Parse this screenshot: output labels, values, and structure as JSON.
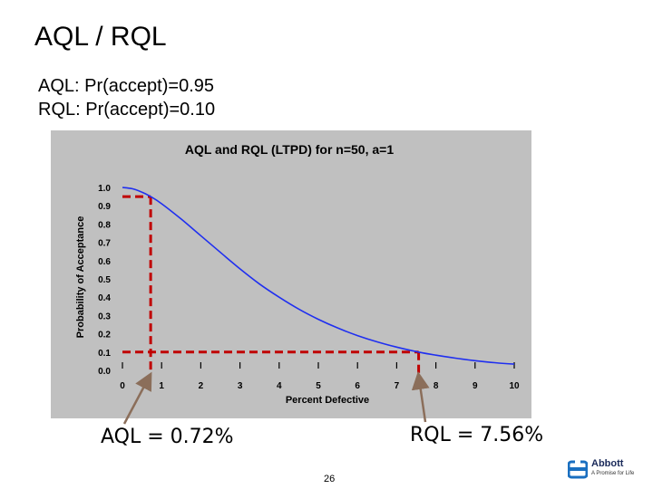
{
  "slide": {
    "title": "AQL / RQL",
    "definitions": [
      {
        "term": "AQL",
        "text": ": Pr(accept)=0.95"
      },
      {
        "term": "RQL",
        "text": ": Pr(accept)=0.10"
      }
    ],
    "aql_callout": "AQL = 0.72%",
    "rql_callout": "RQL = 7.56%",
    "page_number": "26",
    "logo": {
      "name": "Abbott",
      "tagline": "A Promise for Life"
    }
  },
  "colors": {
    "plot_background": "#c0c0c0",
    "curve": "#1f2ff0",
    "reference_lines": "#c00000",
    "callout_arrow": "#8b6e5a"
  },
  "chart_data": {
    "type": "line",
    "title": "AQL and RQL (LTPD) for n=50, a=1",
    "xlabel": "Percent Defective",
    "ylabel": "Probability of Acceptance",
    "xlim": [
      0,
      10
    ],
    "ylim": [
      0,
      1
    ],
    "x_ticks": [
      "0",
      "1",
      "2",
      "3",
      "4",
      "5",
      "6",
      "7",
      "8",
      "9",
      "10"
    ],
    "y_ticks": [
      "0.0",
      "0.1",
      "0.2",
      "0.3",
      "0.4",
      "0.5",
      "0.6",
      "0.7",
      "0.8",
      "0.9",
      "1.0"
    ],
    "grid": false,
    "series": [
      {
        "x": [
          0,
          0.25,
          0.5,
          0.72,
          1,
          1.5,
          2,
          2.5,
          3,
          3.5,
          4,
          4.5,
          5,
          5.5,
          6,
          6.5,
          7,
          7.56,
          8,
          8.5,
          9,
          9.5,
          10
        ],
        "y": [
          1.0,
          0.993,
          0.974,
          0.95,
          0.911,
          0.827,
          0.736,
          0.645,
          0.555,
          0.472,
          0.4,
          0.335,
          0.279,
          0.231,
          0.19,
          0.156,
          0.127,
          0.1,
          0.083,
          0.067,
          0.053,
          0.042,
          0.034
        ]
      }
    ],
    "reference_lines": [
      {
        "x": 0.72,
        "y": 0.95
      },
      {
        "x": 7.56,
        "y": 0.1
      }
    ]
  }
}
